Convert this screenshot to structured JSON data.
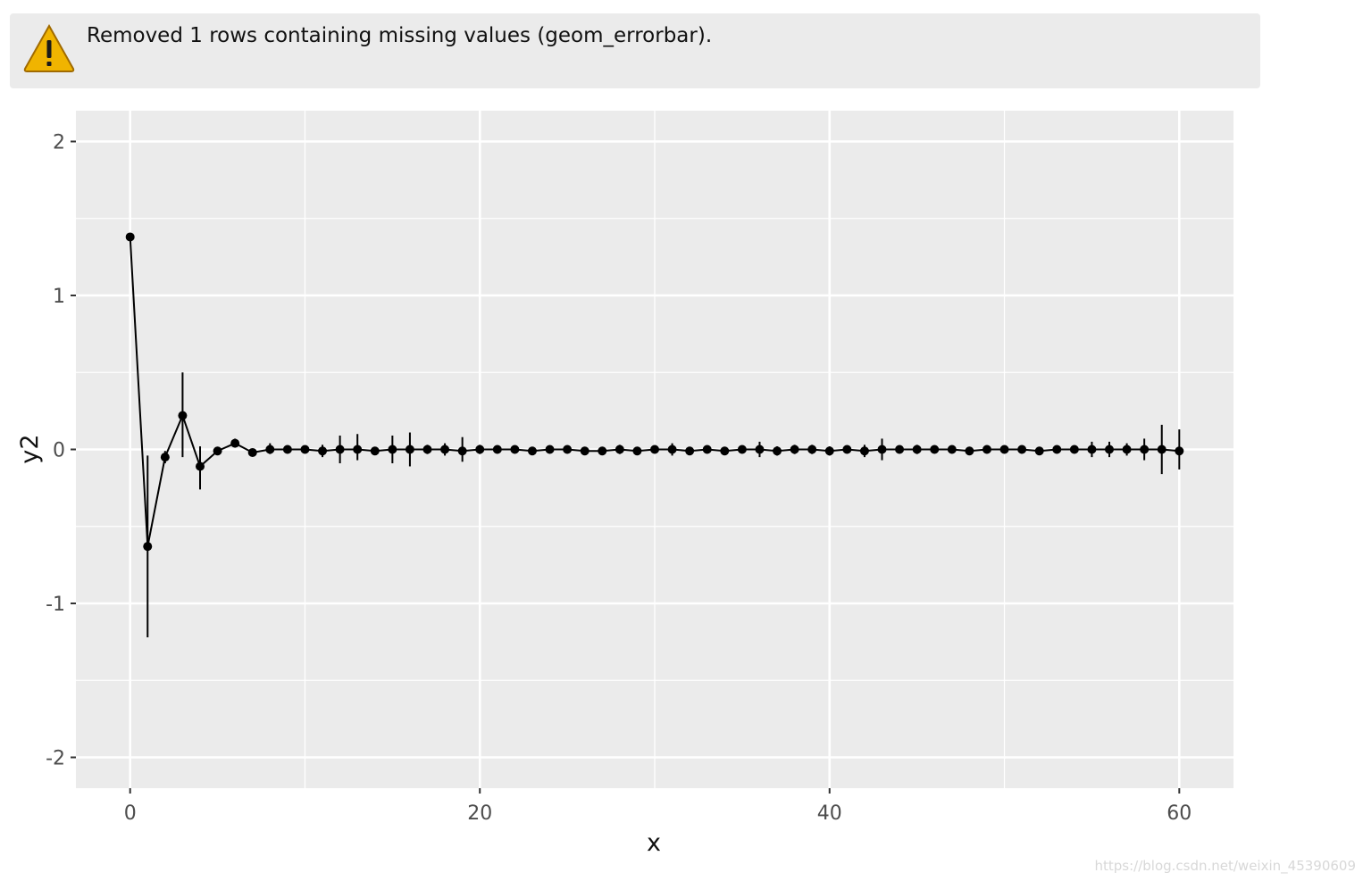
{
  "warning": {
    "icon": "warning-icon",
    "message": "Removed 1 rows containing missing values (geom_errorbar)."
  },
  "watermark": "https://blog.csdn.net/weixin_45390609",
  "colors": {
    "panel_background": "#ebebeb",
    "grid": "#ffffff",
    "points": "#000000",
    "tick_text": "#4d4d4d",
    "warning_icon": "#f0b400"
  },
  "chart_data": {
    "type": "line",
    "title": "",
    "xlabel": "x",
    "ylabel": "y2",
    "xlim": [
      -3.1,
      63.1
    ],
    "ylim": [
      -2.2,
      2.2
    ],
    "x_ticks": [
      0,
      20,
      40,
      60
    ],
    "x_tick_labels": [
      "0",
      "20",
      "40",
      "60"
    ],
    "y_ticks": [
      -2,
      -1,
      0,
      1,
      2
    ],
    "y_tick_labels": [
      "-2",
      "-1",
      "0",
      "1",
      "2"
    ],
    "grid": true,
    "legend": "none",
    "x": [
      0,
      1,
      2,
      3,
      4,
      5,
      6,
      7,
      8,
      9,
      10,
      11,
      12,
      13,
      14,
      15,
      16,
      17,
      18,
      19,
      20,
      21,
      22,
      23,
      24,
      25,
      26,
      27,
      28,
      29,
      30,
      31,
      32,
      33,
      34,
      35,
      36,
      37,
      38,
      39,
      40,
      41,
      42,
      43,
      44,
      45,
      46,
      47,
      48,
      49,
      50,
      51,
      52,
      53,
      54,
      55,
      56,
      57,
      58,
      59,
      60
    ],
    "y": [
      1.38,
      -0.63,
      -0.05,
      0.22,
      -0.11,
      -0.01,
      0.04,
      -0.02,
      0.0,
      0.0,
      0.0,
      -0.01,
      0.0,
      0.0,
      -0.01,
      0.0,
      0.0,
      0.0,
      0.0,
      -0.01,
      0.0,
      0.0,
      0.0,
      -0.01,
      0.0,
      0.0,
      -0.01,
      -0.01,
      0.0,
      -0.01,
      0.0,
      0.0,
      -0.01,
      0.0,
      -0.01,
      0.0,
      0.0,
      -0.01,
      0.0,
      0.0,
      -0.01,
      0.0,
      -0.01,
      0.0,
      0.0,
      0.0,
      0.0,
      0.0,
      -0.01,
      0.0,
      0.0,
      0.0,
      -0.01,
      0.0,
      0.0,
      0.0,
      0.0,
      0.0,
      0.0,
      0.0,
      -0.01
    ],
    "error_low": [
      null,
      -1.22,
      -0.09,
      -0.05,
      -0.26,
      -0.03,
      0.02,
      -0.03,
      -0.03,
      -0.01,
      -0.01,
      -0.05,
      -0.09,
      -0.07,
      -0.02,
      -0.09,
      -0.11,
      -0.03,
      -0.04,
      -0.08,
      -0.03,
      -0.01,
      -0.01,
      -0.02,
      -0.01,
      -0.01,
      -0.02,
      -0.02,
      -0.03,
      -0.02,
      -0.01,
      -0.04,
      -0.02,
      -0.01,
      -0.02,
      -0.02,
      -0.05,
      -0.04,
      -0.03,
      -0.03,
      -0.04,
      -0.02,
      -0.05,
      -0.07,
      -0.02,
      -0.03,
      -0.02,
      -0.02,
      -0.02,
      -0.01,
      -0.01,
      -0.01,
      -0.02,
      -0.01,
      -0.01,
      -0.05,
      -0.05,
      -0.04,
      -0.07,
      -0.16,
      -0.13
    ],
    "error_high": [
      null,
      -0.04,
      -0.01,
      0.5,
      0.02,
      0.01,
      0.07,
      -0.01,
      0.04,
      0.01,
      0.01,
      0.03,
      0.09,
      0.1,
      0.01,
      0.09,
      0.11,
      0.03,
      0.04,
      0.08,
      0.03,
      0.01,
      0.01,
      0.0,
      0.01,
      0.01,
      0.0,
      0.0,
      0.03,
      0.0,
      0.01,
      0.04,
      0.0,
      0.01,
      0.0,
      0.02,
      0.05,
      0.02,
      0.03,
      0.03,
      0.02,
      0.02,
      0.03,
      0.07,
      0.02,
      0.03,
      0.02,
      0.02,
      0.0,
      0.01,
      0.01,
      0.01,
      0.0,
      0.01,
      0.01,
      0.05,
      0.05,
      0.04,
      0.07,
      0.16,
      0.13
    ]
  }
}
